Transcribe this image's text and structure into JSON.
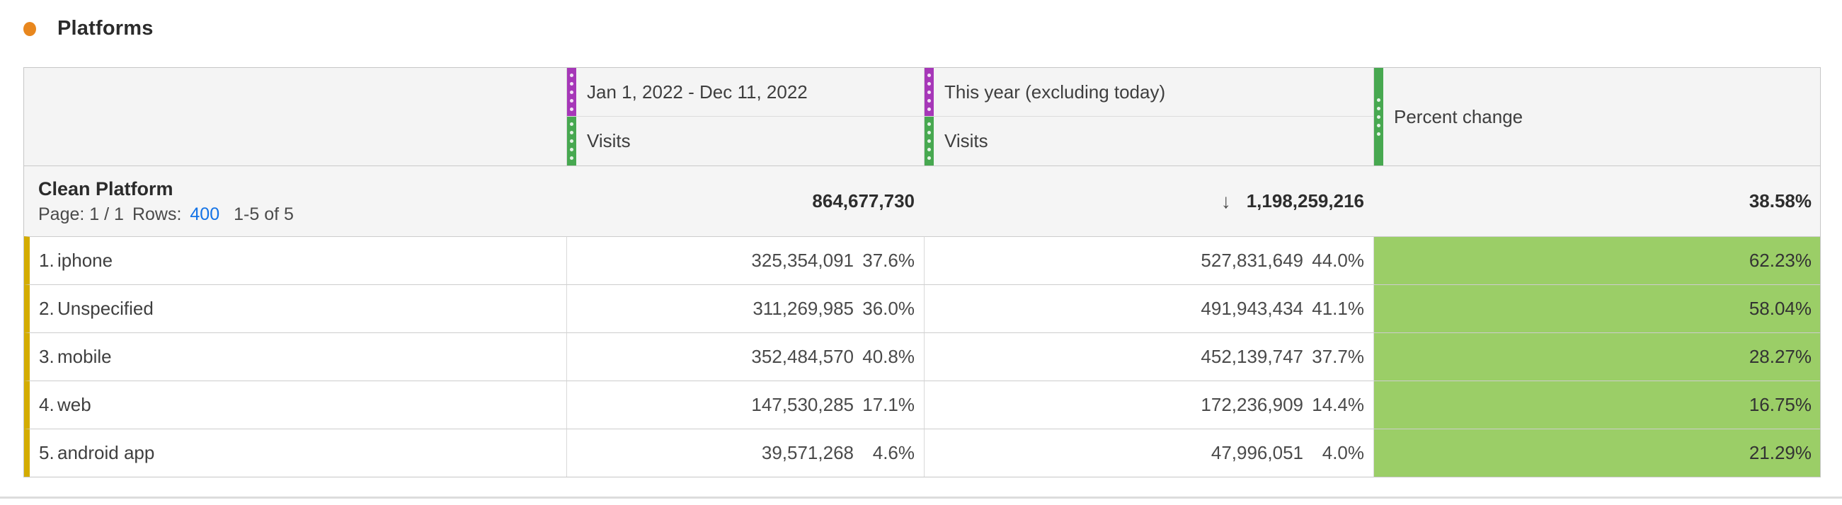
{
  "panel": {
    "title": "Platforms"
  },
  "colors": {
    "panel_bullet": "#e8871e",
    "date_range_handle": "#a637b8",
    "metric_handle": "#47a850",
    "percent_change_cell": "#9bce67",
    "dimension_row_accent": "#d4ac00",
    "link_blue": "#1473e6"
  },
  "table": {
    "columns": [
      {
        "group": "Jan 1, 2022 - Dec 11, 2022",
        "metric": "Visits"
      },
      {
        "group": "This year (excluding today)",
        "metric": "Visits"
      },
      {
        "group": "Percent change"
      }
    ],
    "summary": {
      "dimension_name": "Clean Platform",
      "page_label": "Page: 1 / 1",
      "rows_label": "Rows:",
      "rows_count": "400",
      "range_label": "1-5 of 5",
      "sort_icon": "↓",
      "total_visits_range1": "864,677,730",
      "total_visits_range2": "1,198,259,216",
      "total_percent_change": "38.58%"
    },
    "rows": [
      {
        "rank": "1.",
        "name": "iphone",
        "visits1": "325,354,091",
        "share1": "37.6%",
        "visits2": "527,831,649",
        "share2": "44.0%",
        "change": "62.23%"
      },
      {
        "rank": "2.",
        "name": "Unspecified",
        "visits1": "311,269,985",
        "share1": "36.0%",
        "visits2": "491,943,434",
        "share2": "41.1%",
        "change": "58.04%"
      },
      {
        "rank": "3.",
        "name": "mobile",
        "visits1": "352,484,570",
        "share1": "40.8%",
        "visits2": "452,139,747",
        "share2": "37.7%",
        "change": "28.27%"
      },
      {
        "rank": "4.",
        "name": "web",
        "visits1": "147,530,285",
        "share1": "17.1%",
        "visits2": "172,236,909",
        "share2": "14.4%",
        "change": "16.75%"
      },
      {
        "rank": "5.",
        "name": "android app",
        "visits1": "39,571,268",
        "share1": "4.6%",
        "visits2": "47,996,051",
        "share2": "4.0%",
        "change": "21.29%"
      }
    ]
  }
}
